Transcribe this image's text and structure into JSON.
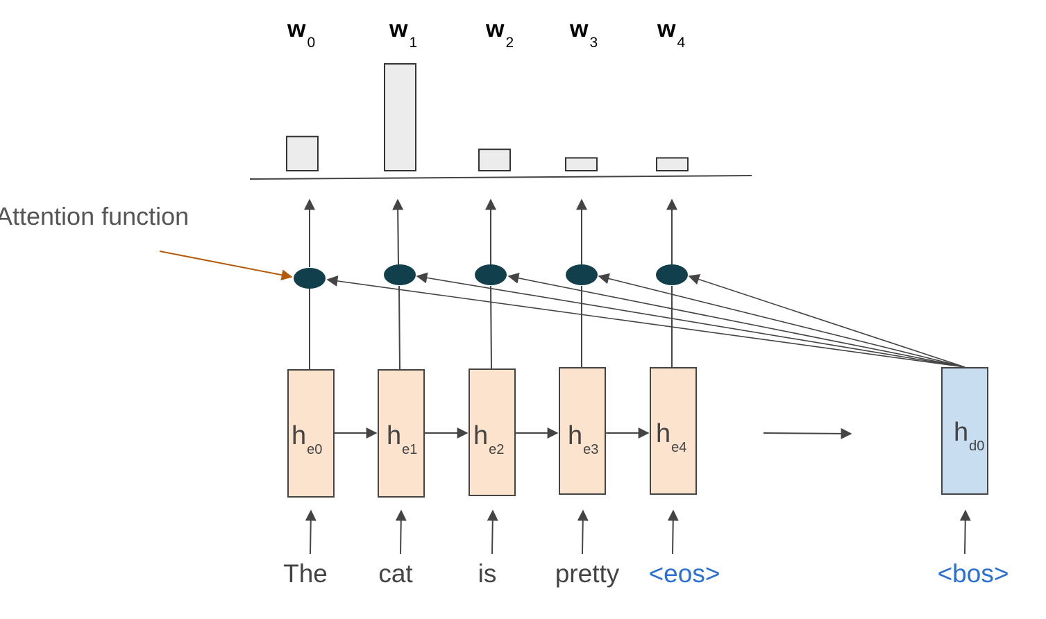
{
  "annotation": {
    "label": "Attention function"
  },
  "weights": {
    "labels": [
      {
        "base": "w",
        "sub": "0"
      },
      {
        "base": "w",
        "sub": "1"
      },
      {
        "base": "w",
        "sub": "2"
      },
      {
        "base": "w",
        "sub": "3"
      },
      {
        "base": "w",
        "sub": "4"
      }
    ],
    "values": [
      0.32,
      1.0,
      0.2,
      0.12,
      0.12
    ]
  },
  "encoder": {
    "states": [
      {
        "base": "h",
        "sub": "e0"
      },
      {
        "base": "h",
        "sub": "e1"
      },
      {
        "base": "h",
        "sub": "e2"
      },
      {
        "base": "h",
        "sub": "e3"
      },
      {
        "base": "h",
        "sub": "e4"
      }
    ],
    "inputs": [
      "The",
      "cat",
      "is",
      "pretty",
      "<eos>"
    ]
  },
  "decoder": {
    "state": {
      "base": "h",
      "sub": "d0"
    },
    "input": "<bos>"
  },
  "colors": {
    "encoder_fill": "#fce3cd",
    "decoder_fill": "#c9ddf1",
    "attention_node": "#113f4c",
    "bar_fill": "#ececec",
    "annotation_arrow": "#b45a0a",
    "special_token": "#2a6fd1",
    "line": "#444444"
  }
}
